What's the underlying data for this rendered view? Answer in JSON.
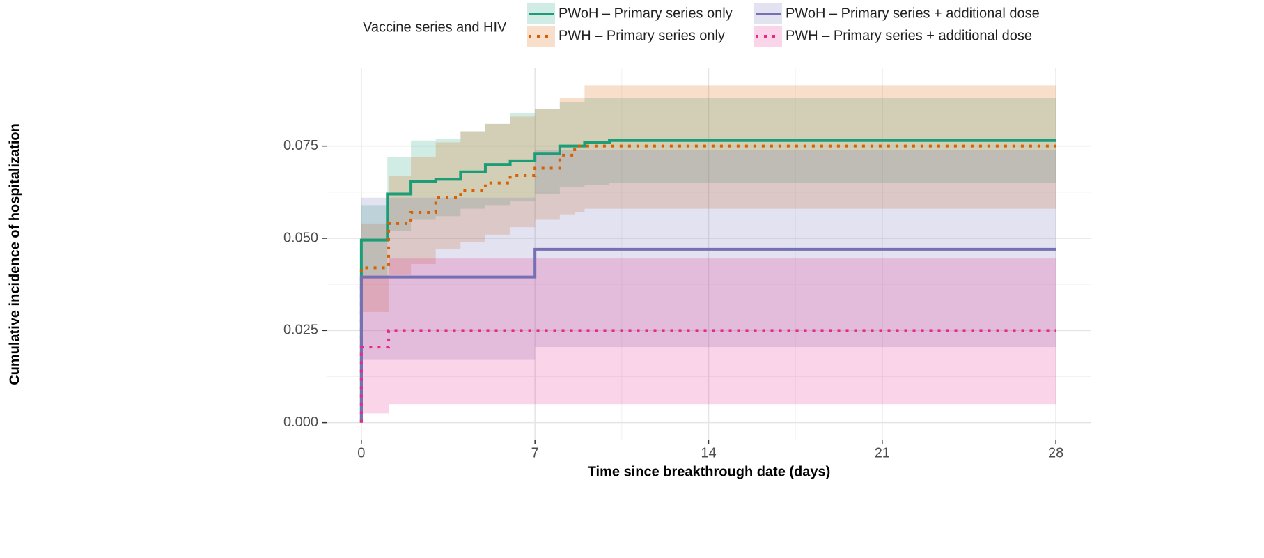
{
  "chart_data": {
    "type": "step",
    "xlabel": "Time since breakthrough date (days)",
    "ylabel": "Cumulative incidence of hospitalization",
    "legend_title": "Vaccine series and HIV",
    "legend_position": "top",
    "grid": true,
    "xlim": [
      -1.4,
      29.4
    ],
    "xticks": [
      0,
      7,
      14,
      21,
      28
    ],
    "ylim": [
      -0.0046,
      0.0961
    ],
    "yticks": [
      {
        "value": 0,
        "label": "0.000"
      },
      {
        "value": 0.025,
        "label": "0.025"
      },
      {
        "value": 0.05,
        "label": "0.050"
      },
      {
        "value": 0.075,
        "label": "0.075"
      }
    ],
    "series": [
      {
        "name": "PWoH – Primary series only",
        "color": "#1b9e77",
        "linestyle": "solid",
        "x": [
          0,
          0,
          1.05,
          2,
          3,
          4,
          5,
          6,
          7,
          8,
          9,
          10,
          28
        ],
        "values": [
          0,
          0.0495,
          0.062,
          0.0655,
          0.066,
          0.068,
          0.07,
          0.071,
          0.073,
          0.075,
          0.076,
          0.0765,
          0.0765
        ],
        "lower": [
          0,
          0.04,
          0.052,
          0.055,
          0.056,
          0.058,
          0.059,
          0.06,
          0.062,
          0.064,
          0.0645,
          0.065,
          0.065
        ],
        "upper": [
          0,
          0.059,
          0.072,
          0.0765,
          0.077,
          0.079,
          0.081,
          0.084,
          0.085,
          0.087,
          0.088,
          0.088,
          0.088
        ]
      },
      {
        "name": "PWH – Primary series only",
        "color": "#d95f02",
        "linestyle": "dotted",
        "x": [
          0,
          0,
          1.1,
          2,
          3,
          4,
          5,
          6,
          7,
          8,
          8.6,
          9,
          28
        ],
        "values": [
          0,
          0.042,
          0.054,
          0.057,
          0.061,
          0.063,
          0.065,
          0.067,
          0.069,
          0.0725,
          0.075,
          0.075,
          0.075
        ],
        "lower": [
          0,
          0.03,
          0.04,
          0.043,
          0.047,
          0.049,
          0.051,
          0.053,
          0.055,
          0.0565,
          0.057,
          0.058,
          0.058
        ],
        "upper": [
          0,
          0.054,
          0.067,
          0.072,
          0.076,
          0.079,
          0.081,
          0.083,
          0.085,
          0.088,
          0.088,
          0.0915,
          0.0915
        ]
      },
      {
        "name": "PWoH – Primary series + additional dose",
        "color": "#7570b3",
        "linestyle": "solid",
        "x": [
          0,
          0,
          7,
          28
        ],
        "values": [
          0,
          0.0395,
          0.047,
          0.047
        ],
        "lower": [
          0,
          0.017,
          0.0205,
          0.0205
        ],
        "upper": [
          0,
          0.061,
          0.074,
          0.074
        ]
      },
      {
        "name": "PWH – Primary series + additional dose",
        "color": "#e7298a",
        "linestyle": "dotted",
        "x": [
          0,
          0,
          1.1,
          28
        ],
        "values": [
          0,
          0.0205,
          0.025,
          0.025
        ],
        "lower": [
          0,
          0.0025,
          0.005,
          0.005
        ],
        "upper": [
          0,
          0.04,
          0.0445,
          0.0445
        ]
      }
    ]
  }
}
